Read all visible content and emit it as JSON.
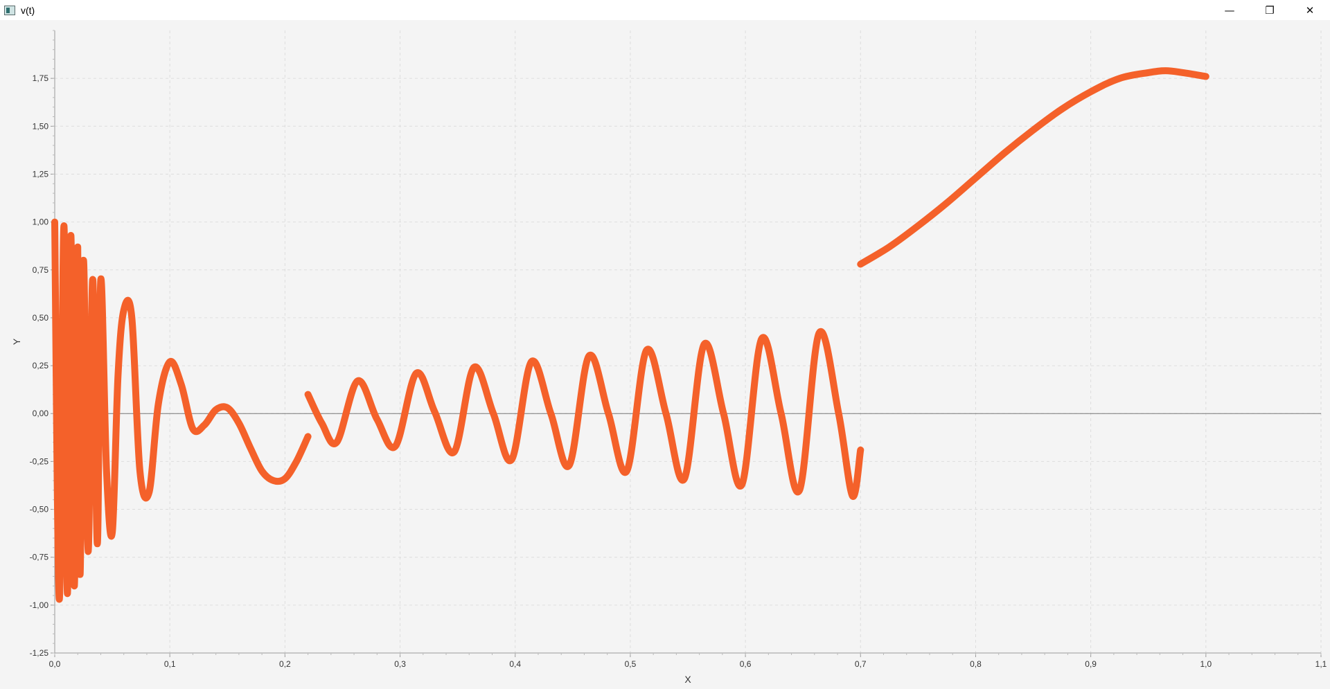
{
  "window": {
    "title": "v(t)",
    "controls": {
      "minimize": "—",
      "restore": "❐",
      "close": "✕"
    }
  },
  "chart_data": {
    "type": "line",
    "title": "",
    "xlabel": "X",
    "ylabel": "Y",
    "xlim": [
      0,
      1.1
    ],
    "ylim": [
      -1.25,
      2.0
    ],
    "grid": true,
    "line_color": "#f4612a",
    "x_ticks": [
      "0,0",
      "0,1",
      "0,2",
      "0,3",
      "0,4",
      "0,5",
      "0,6",
      "0,7",
      "0,8",
      "0,9",
      "1,0",
      "1,1"
    ],
    "y_ticks": [
      "-1,25",
      "-1,00",
      "-0,75",
      "-0,50",
      "-0,25",
      "0,00",
      "0,25",
      "0,50",
      "0,75",
      "1,00",
      "1,25",
      "1,50",
      "1,75"
    ],
    "series": [
      {
        "segment": 1,
        "x": [
          0.0,
          0.004,
          0.008,
          0.011,
          0.014,
          0.017,
          0.02,
          0.022,
          0.025,
          0.029,
          0.033,
          0.037,
          0.04,
          0.045,
          0.05,
          0.055,
          0.06,
          0.067,
          0.074,
          0.082,
          0.09,
          0.1,
          0.11,
          0.12,
          0.13,
          0.14,
          0.15,
          0.16,
          0.17,
          0.18,
          0.19,
          0.2,
          0.21,
          0.22
        ],
        "y": [
          1.0,
          -0.97,
          0.98,
          -0.94,
          0.93,
          -0.9,
          0.87,
          -0.84,
          0.8,
          -0.72,
          0.7,
          -0.68,
          0.7,
          -0.3,
          -0.62,
          0.2,
          0.54,
          0.5,
          -0.3,
          -0.41,
          0.05,
          0.27,
          0.15,
          -0.08,
          -0.06,
          0.02,
          0.03,
          -0.05,
          -0.18,
          -0.3,
          -0.35,
          -0.34,
          -0.25,
          -0.12
        ]
      },
      {
        "segment": 2,
        "x": [
          0.22,
          0.232,
          0.245,
          0.263,
          0.28,
          0.296,
          0.314,
          0.33,
          0.347,
          0.364,
          0.381,
          0.397,
          0.414,
          0.431,
          0.447,
          0.464,
          0.481,
          0.497,
          0.514,
          0.531,
          0.547,
          0.564,
          0.581,
          0.597,
          0.614,
          0.631,
          0.647,
          0.664,
          0.681,
          0.693,
          0.7
        ],
        "y": [
          0.1,
          -0.05,
          -0.15,
          0.17,
          -0.03,
          -0.17,
          0.21,
          0.01,
          -0.2,
          0.24,
          0.0,
          -0.24,
          0.27,
          0.0,
          -0.27,
          0.3,
          0.0,
          -0.3,
          0.33,
          0.0,
          -0.34,
          0.36,
          0.0,
          -0.37,
          0.39,
          0.0,
          -0.4,
          0.42,
          0.0,
          -0.43,
          -0.19
        ]
      },
      {
        "segment": 3,
        "x": [
          0.7,
          0.725,
          0.75,
          0.775,
          0.8,
          0.825,
          0.85,
          0.875,
          0.9,
          0.925,
          0.95,
          0.965,
          0.98,
          1.0
        ],
        "y": [
          0.78,
          0.87,
          0.98,
          1.1,
          1.23,
          1.36,
          1.48,
          1.59,
          1.68,
          1.75,
          1.78,
          1.79,
          1.78,
          1.76
        ]
      }
    ]
  }
}
